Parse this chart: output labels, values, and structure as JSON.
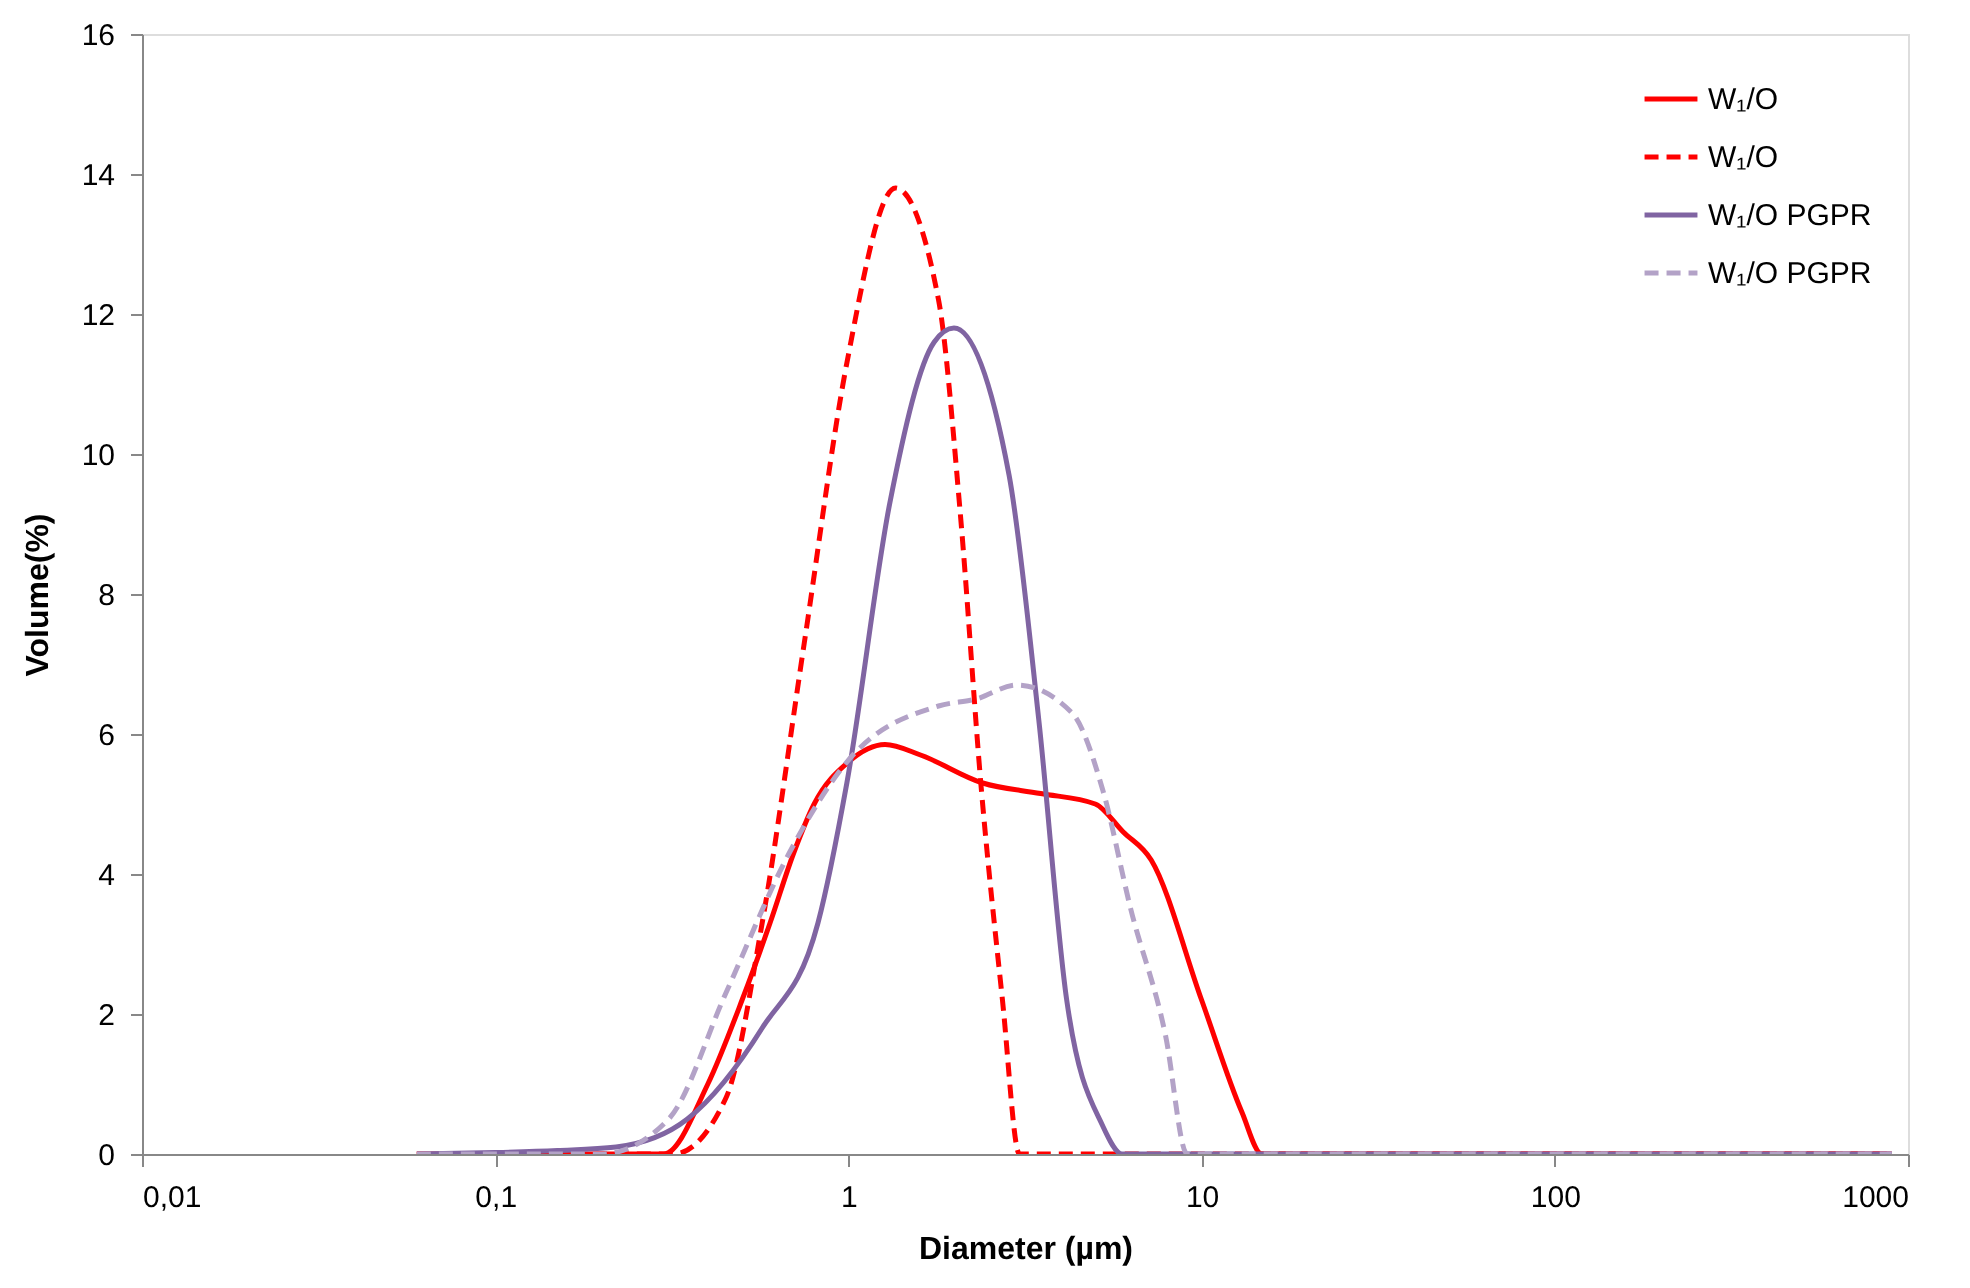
{
  "chart_data": {
    "type": "line",
    "xlabel": "Diameter (µm)",
    "ylabel": "Volume(%)",
    "log": "x",
    "xlim": [
      0.01,
      1000
    ],
    "xticks": [
      {
        "value": 0.01,
        "label": "0,01"
      },
      {
        "value": 0.1,
        "label": "0,1"
      },
      1,
      10,
      100,
      1000
    ],
    "ylim": [
      0,
      16
    ],
    "yticks": [
      0,
      2,
      4,
      6,
      8,
      10,
      12,
      14,
      16
    ],
    "grid": false,
    "legend": "top right",
    "marker": "none",
    "series": [
      {
        "name": "W₁/O",
        "color": "#ff0000",
        "line_style": "solid",
        "x": [
          0.06,
          0.3,
          0.4,
          0.5,
          0.6,
          0.7,
          0.8,
          1.0,
          1.27,
          1.6,
          2.4,
          3.5,
          5.0,
          6.0,
          7.2,
          10,
          13,
          14.8,
          100,
          900
        ],
        "values": [
          0,
          0,
          1.0,
          2.2,
          3.3,
          4.3,
          5.0,
          5.6,
          5.85,
          5.7,
          5.3,
          5.15,
          5.0,
          4.6,
          4.2,
          2.2,
          0.6,
          0,
          0,
          0
        ]
      },
      {
        "name": "W₁/O",
        "color": "#ff0000",
        "line_style": "dashed",
        "x": [
          0.06,
          0.32,
          0.45,
          0.57,
          0.75,
          0.99,
          1.36,
          1.8,
          2.07,
          2.38,
          2.73,
          3.05,
          100,
          900
        ],
        "values": [
          0,
          0,
          0.8,
          3.3,
          7.3,
          11.3,
          13.8,
          12.2,
          9.2,
          5.2,
          2.2,
          0,
          0,
          0
        ]
      },
      {
        "name": "W₁/O PGPR",
        "color": "#8064a2",
        "line_style": "solid",
        "x": [
          0.06,
          0.1,
          0.15,
          0.22,
          0.35,
          0.57,
          0.82,
          0.99,
          1.31,
          1.75,
          1.99,
          2.85,
          3.46,
          4.15,
          5.25,
          5.96,
          100,
          900
        ],
        "values": [
          0,
          0.02,
          0.05,
          0.1,
          0.5,
          1.8,
          3.3,
          5.3,
          9.3,
          11.6,
          11.8,
          9.7,
          6.2,
          2.2,
          0.4,
          0,
          0,
          0
        ]
      },
      {
        "name": "W₁/O PGPR",
        "color": "#b3a2c7",
        "line_style": "dashed",
        "x": [
          0.06,
          0.2,
          0.31,
          0.45,
          0.68,
          0.99,
          1.8,
          2.3,
          3.0,
          4.3,
          5.25,
          6.3,
          7.9,
          9.1,
          100,
          900
        ],
        "values": [
          0,
          0,
          0.5,
          2.3,
          4.3,
          5.6,
          6.4,
          6.5,
          6.7,
          6.3,
          5.2,
          3.5,
          1.7,
          0,
          0,
          0
        ]
      }
    ]
  }
}
